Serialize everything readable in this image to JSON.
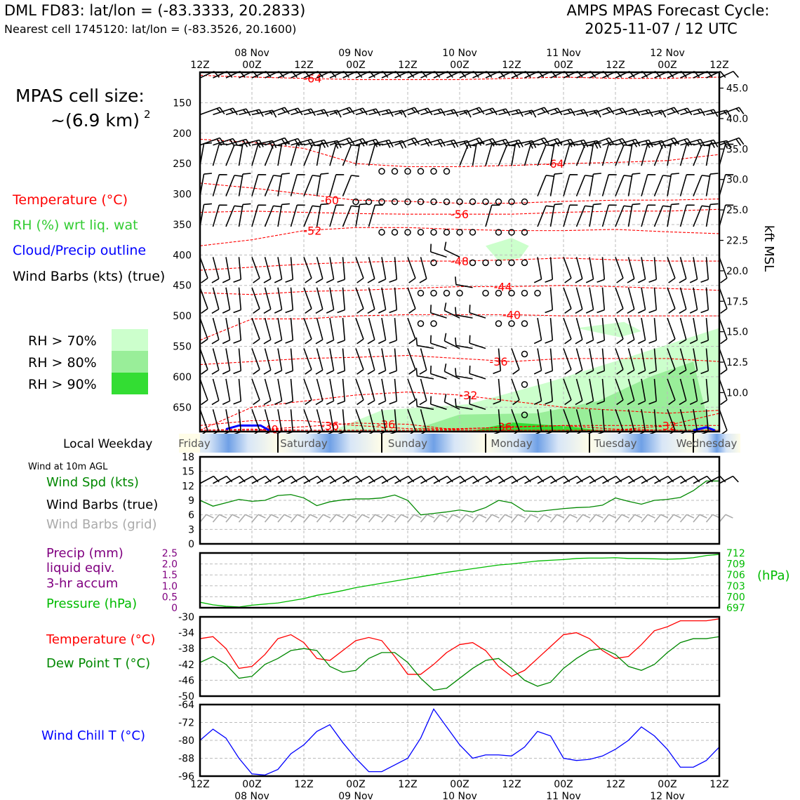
{
  "header": {
    "station_line": "DML FD83: lat/lon = (-83.3333, 20.2833)",
    "cell_line": "Nearest cell 1745120: lat/lon = (-83.3526, 20.1600)",
    "cycle_title": "AMPS MPAS Forecast Cycle:",
    "cycle_time": "2025-11-07 / 12 UTC"
  },
  "legend": {
    "cell_size_title": "MPAS cell size:",
    "cell_size_value": "~(6.9 km)",
    "cell_size_exp": "2",
    "temperature": "Temperature (°C)",
    "rh": "RH (%) wrt liq. wat",
    "cloud": "Cloud/Precip outline",
    "barbs": "Wind Barbs (kts) (true)",
    "rh_levels": [
      "RH > 70%",
      "RH > 80%",
      "RH > 90%"
    ],
    "weekday_label": "Local Weekday",
    "wind10m_label": "Wind at 10m AGL",
    "wind_spd": "Wind Spd (kts)",
    "wind_barbs_true": "Wind Barbs (true)",
    "wind_barbs_grid": "Wind Barbs (grid)",
    "precip1": "Precip (mm)",
    "precip2": "liquid eqiv.",
    "precip3": "3-hr accum",
    "pressure": "Pressure (hPa)",
    "pressure_unit": "(hPa)",
    "temp2": "Temperature (°C)",
    "dewpoint": "Dew Point T (°C)",
    "windchill": "Wind Chill T (°C)",
    "kft": "kft MSL"
  },
  "colors": {
    "temperature": "#ff0000",
    "rh_text": "#33cc33",
    "cloud": "#0000ff",
    "rh70": "#ccffcc",
    "rh80": "#99ee99",
    "rh90": "#33dd33",
    "dewpoint": "#008800",
    "pressure": "#00bb00",
    "precip": "#800080",
    "windchill": "#0000ff",
    "grid_barb": "#aaaaaa"
  },
  "chart_data": {
    "time_axis": {
      "top_labels": [
        {
          "hour": "12Z",
          "date": ""
        },
        {
          "hour": "00Z",
          "date": "08 Nov"
        },
        {
          "hour": "12Z",
          "date": ""
        },
        {
          "hour": "00Z",
          "date": "09 Nov"
        },
        {
          "hour": "12Z",
          "date": ""
        },
        {
          "hour": "00Z",
          "date": "10 Nov"
        },
        {
          "hour": "12Z",
          "date": ""
        },
        {
          "hour": "00Z",
          "date": "11 Nov"
        },
        {
          "hour": "12Z",
          "date": ""
        },
        {
          "hour": "00Z",
          "date": "12 Nov"
        },
        {
          "hour": "12Z",
          "date": ""
        }
      ],
      "forecast_hours": [
        0,
        3,
        6,
        9,
        12,
        15,
        18,
        21,
        24,
        27,
        30,
        33,
        36,
        39,
        42,
        45,
        48,
        51,
        54,
        57,
        60,
        63,
        66,
        69,
        72,
        75,
        78,
        81,
        84,
        87,
        90,
        93,
        96,
        99,
        102,
        105,
        108,
        111,
        114,
        117,
        120
      ]
    },
    "weekdays": [
      "Friday",
      "Saturday",
      "Sunday",
      "Monday",
      "Tuesday",
      "Wednesday"
    ],
    "profile": {
      "type": "heatmap",
      "pressure_ticks": [
        150,
        200,
        250,
        300,
        350,
        400,
        450,
        500,
        550,
        600,
        650
      ],
      "kft_ticks": [
        "45.0",
        "40.0",
        "35.0",
        "30.0",
        "25.0",
        "22.5",
        "20.0",
        "17.5",
        "15.0",
        "12.5",
        "10.0"
      ],
      "ylim_hpa": [
        100,
        690
      ],
      "barb_levels_hpa": [
        100,
        150,
        200,
        250,
        300,
        350,
        400,
        450,
        500,
        550,
        600,
        650
      ],
      "temperature_contours": [
        {
          "label": "-64",
          "level": -64
        },
        {
          "label": "-64",
          "level": -64
        },
        {
          "label": "-60",
          "level": -60
        },
        {
          "label": "-56",
          "level": -56
        },
        {
          "label": "-52",
          "level": -52
        },
        {
          "label": "-48",
          "level": -48
        },
        {
          "label": "-44",
          "level": -44
        },
        {
          "label": "-40",
          "level": -40
        },
        {
          "label": "-36",
          "level": -36
        },
        {
          "label": "-32",
          "level": -32
        },
        {
          "label": "-32",
          "level": -32
        },
        {
          "label": "-36",
          "level": -36
        },
        {
          "label": "-36",
          "level": -36
        },
        {
          "label": "-36",
          "level": -36
        },
        {
          "label": "-40",
          "level": -40
        }
      ]
    },
    "wind10m": {
      "type": "line",
      "ylabel": "Wind Spd (kts)",
      "ylim": [
        0,
        18
      ],
      "yticks": [
        0,
        3,
        6,
        9,
        12,
        15,
        18
      ],
      "values": [
        9.0,
        7.8,
        8.5,
        9.2,
        8.8,
        9.0,
        10.0,
        10.2,
        9.5,
        7.9,
        8.7,
        9.1,
        9.3,
        9.3,
        9.5,
        10.1,
        9.0,
        6.0,
        6.3,
        6.6,
        7.0,
        6.6,
        7.5,
        9.0,
        8.5,
        6.8,
        6.7,
        7.0,
        7.3,
        7.5,
        7.6,
        8.0,
        9.5,
        8.8,
        8.2,
        9.0,
        9.2,
        9.6,
        11.0,
        13.0,
        13.0
      ]
    },
    "precip_pressure": {
      "type": "line",
      "precip_ylim": [
        0,
        2.5
      ],
      "precip_ticks": [
        "0",
        "0.5",
        "1.0",
        "1.5",
        "2.0",
        "2.5"
      ],
      "pressure_ylim": [
        697,
        712
      ],
      "pressure_ticks": [
        "697",
        "700",
        "703",
        "706",
        "709",
        "712"
      ],
      "pressure": [
        698.5,
        697.8,
        697.4,
        697.2,
        697.7,
        698.0,
        698.3,
        698.9,
        699.5,
        700.4,
        701.0,
        701.7,
        702.5,
        703.1,
        703.7,
        704.3,
        704.9,
        705.5,
        706.1,
        706.7,
        707.2,
        707.7,
        708.2,
        708.7,
        709.0,
        709.4,
        709.8,
        710.0,
        710.2,
        710.5,
        710.6,
        710.6,
        710.7,
        710.5,
        710.5,
        710.4,
        710.3,
        710.4,
        710.7,
        711.3,
        711.6
      ],
      "precip": [
        0,
        0,
        0,
        0,
        0,
        0,
        0,
        0,
        0,
        0,
        0,
        0,
        0,
        0,
        0,
        0,
        0,
        0,
        0,
        0,
        0,
        0,
        0,
        0,
        0,
        0,
        0,
        0,
        0,
        0,
        0,
        0,
        0,
        0,
        0,
        0,
        0,
        0,
        0,
        0,
        0
      ]
    },
    "temps": {
      "type": "line",
      "ylim": [
        -50,
        -30
      ],
      "yticks": [
        -30,
        -34,
        -38,
        -42,
        -46,
        -50
      ],
      "temperature": [
        -35.5,
        -35.0,
        -38.0,
        -43.0,
        -42.5,
        -39.5,
        -35.5,
        -34.5,
        -36.5,
        -40.5,
        -41.0,
        -38.5,
        -36.0,
        -35.2,
        -36.0,
        -40.0,
        -44.5,
        -44.5,
        -42.0,
        -39.0,
        -37.0,
        -36.5,
        -38.5,
        -42.5,
        -45.0,
        -43.5,
        -40.5,
        -37.5,
        -34.5,
        -34.0,
        -35.5,
        -38.5,
        -40.5,
        -40.0,
        -37.0,
        -33.5,
        -32.5,
        -31.0,
        -31.0,
        -31.0,
        -30.5
      ],
      "dewpoint": [
        -41.5,
        -40.0,
        -42.0,
        -45.5,
        -45.0,
        -42.0,
        -40.5,
        -38.5,
        -38.0,
        -38.5,
        -42.5,
        -44.0,
        -43.5,
        -40.5,
        -39.0,
        -39.0,
        -41.5,
        -45.5,
        -48.5,
        -48.0,
        -45.5,
        -43.0,
        -41.0,
        -40.5,
        -43.0,
        -46.0,
        -47.5,
        -46.5,
        -43.0,
        -40.5,
        -38.5,
        -38.0,
        -39.5,
        -42.5,
        -43.5,
        -42.0,
        -39.0,
        -36.5,
        -35.5,
        -35.5,
        -35.0
      ]
    },
    "windchill": {
      "type": "line",
      "ylim": [
        -96,
        -64
      ],
      "yticks": [
        -64,
        -72,
        -80,
        -88,
        -96
      ],
      "values": [
        -80.0,
        -75.0,
        -79.0,
        -88.0,
        -95.0,
        -95.5,
        -93.0,
        -86.0,
        -82.0,
        -76.0,
        -73.0,
        -81.0,
        -88.0,
        -94.0,
        -94.0,
        -91.0,
        -88.0,
        -79.0,
        -66.0,
        -74.0,
        -82.0,
        -88.0,
        -86.5,
        -86.5,
        -87.0,
        -83.0,
        -76.0,
        -78.0,
        -88.0,
        -89.0,
        -88.5,
        -87.0,
        -84.0,
        -80.0,
        -74.0,
        -78.0,
        -84.0,
        -92.0,
        -92.0,
        -89.0,
        -83.0
      ]
    }
  }
}
